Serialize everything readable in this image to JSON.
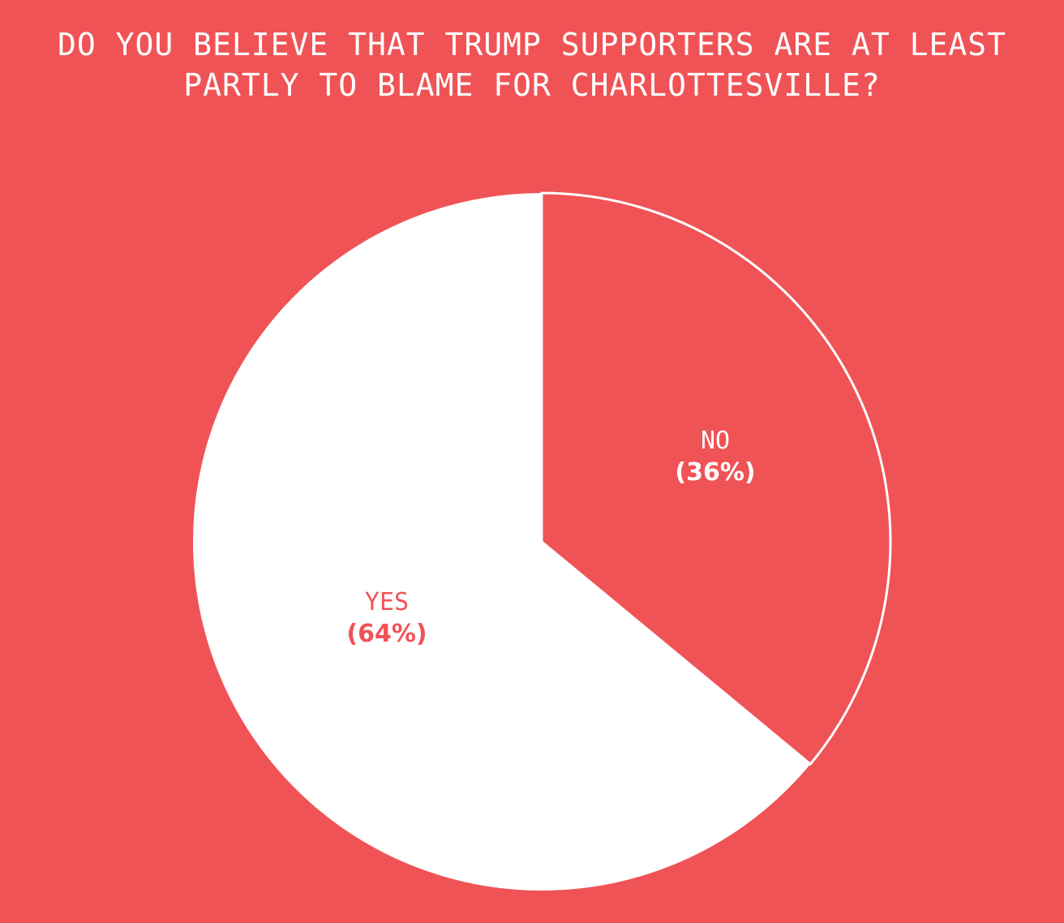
{
  "colors": {
    "background": "#f05356",
    "yes": "#ffffff",
    "no": "#f05356",
    "outline": "#ffffff"
  },
  "title": {
    "line1": "DO YOU BELIEVE THAT TRUMP SUPPORTERS ARE AT LEAST",
    "line2": "PARTLY TO BLAME FOR CHARLOTTESVILLE?"
  },
  "labels": {
    "no": {
      "name": "NO",
      "pct": "(36%)"
    },
    "yes": {
      "name": "YES",
      "pct": "(64%)"
    }
  },
  "chart_data": {
    "type": "pie",
    "title": "DO YOU BELIEVE THAT TRUMP SUPPORTERS ARE AT LEAST PARTLY TO BLAME FOR CHARLOTTESVILLE?",
    "categories": [
      "NO",
      "YES"
    ],
    "values": [
      36,
      64
    ],
    "unit": "%",
    "start_angle": "12 o'clock, clockwise",
    "legend": "none (inline labels)"
  }
}
